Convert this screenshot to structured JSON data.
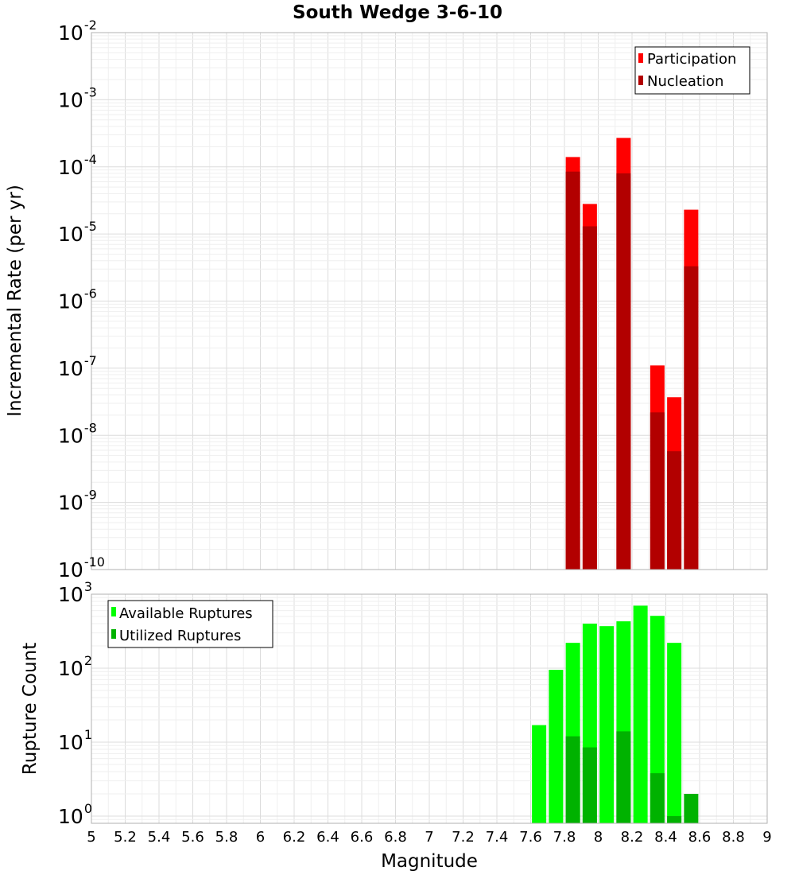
{
  "chart_data": [
    {
      "type": "bar",
      "title": "South Wedge 3-6-10",
      "xlabel": "",
      "ylabel": "Incremental Rate (per yr)",
      "yscale": "log",
      "ylim_exponents": [
        -10,
        -2
      ],
      "xlim": [
        5,
        9
      ],
      "ytick_labels": [
        {
          "base": "10",
          "exp": "-2"
        },
        {
          "base": "10",
          "exp": "-3"
        },
        {
          "base": "10",
          "exp": "-4"
        },
        {
          "base": "10",
          "exp": "-5"
        },
        {
          "base": "10",
          "exp": "-6"
        },
        {
          "base": "10",
          "exp": "-7"
        },
        {
          "base": "10",
          "exp": "-8"
        },
        {
          "base": "10",
          "exp": "-9"
        },
        {
          "base": "10",
          "exp": "-10"
        }
      ],
      "legend_position": "top-right",
      "series": [
        {
          "name": "Participation",
          "color": "#ff0000",
          "x": [
            7.85,
            7.95,
            8.15,
            8.35,
            8.45,
            8.55
          ],
          "values": [
            0.00014,
            2.8e-05,
            0.00027,
            1.1e-07,
            3.7e-08,
            2.3e-05
          ]
        },
        {
          "name": "Nucleation",
          "color": "#b20000",
          "x": [
            7.85,
            7.95,
            8.15,
            8.35,
            8.45,
            8.55
          ],
          "values": [
            8.5e-05,
            1.3e-05,
            8e-05,
            2.2e-08,
            5.8e-09,
            3.3e-06
          ]
        }
      ]
    },
    {
      "type": "bar",
      "title": "",
      "xlabel": "Magnitude",
      "ylabel": "Rupture Count",
      "yscale": "log",
      "ylim": [
        0.8,
        1000
      ],
      "xlim": [
        5,
        9
      ],
      "ytick_labels": [
        {
          "base": "10",
          "exp": "3",
          "value": 1000
        },
        {
          "base": "10",
          "exp": "2",
          "value": 100
        },
        {
          "base": "10",
          "exp": "1",
          "value": 10
        },
        {
          "base": "10",
          "exp": "0",
          "value": 1
        }
      ],
      "legend_position": "top-left",
      "series": [
        {
          "name": "Available Ruptures",
          "color": "#00ff00",
          "x": [
            7.65,
            7.75,
            7.85,
            7.95,
            8.05,
            8.15,
            8.25,
            8.35,
            8.45
          ],
          "values": [
            17,
            95,
            220,
            400,
            370,
            430,
            700,
            510,
            220
          ]
        },
        {
          "name": "Utilized Ruptures",
          "color": "#00b200",
          "x": [
            7.85,
            7.95,
            8.15,
            8.35,
            8.45,
            8.55
          ],
          "values": [
            12,
            8.5,
            14,
            3.8,
            1,
            2
          ]
        }
      ],
      "xtick_labels": [
        "5",
        "5.2",
        "5.4",
        "5.6",
        "5.8",
        "6",
        "6.2",
        "6.4",
        "6.6",
        "6.8",
        "7",
        "7.2",
        "7.4",
        "7.6",
        "7.8",
        "8",
        "8.2",
        "8.4",
        "8.6",
        "8.8",
        "9"
      ]
    }
  ]
}
